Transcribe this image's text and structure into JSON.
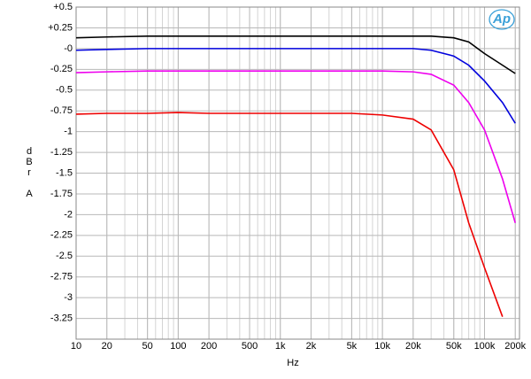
{
  "chart_data": {
    "type": "line",
    "logo": "Ap",
    "xlabel": "Hz",
    "ylabel": "dBr A",
    "xscale": "log",
    "grid": true,
    "xlim": [
      10,
      220000
    ],
    "ylim": [
      -3.5,
      0.5
    ],
    "xticks": [
      10,
      20,
      50,
      100,
      200,
      500,
      {
        "value": 1000,
        "label": "1k"
      },
      {
        "value": 2000,
        "label": "2k"
      },
      {
        "value": 5000,
        "label": "5k"
      },
      {
        "value": 10000,
        "label": "10k"
      },
      {
        "value": 20000,
        "label": "20k"
      },
      {
        "value": 50000,
        "label": "50k"
      },
      {
        "value": 100000,
        "label": "100k"
      },
      {
        "value": 200000,
        "label": "200k"
      }
    ],
    "yticks": [
      {
        "value": 0.5,
        "label": "+0.5"
      },
      {
        "value": 0.25,
        "label": "+0.25"
      },
      {
        "value": 0,
        "label": "-0"
      },
      -0.25,
      -0.5,
      -0.75,
      -1,
      -1.25,
      -1.5,
      -1.75,
      -2,
      -2.25,
      -2.5,
      -2.75,
      -3,
      -3.25
    ],
    "x": [
      10,
      20,
      50,
      100,
      200,
      500,
      1000,
      2000,
      5000,
      10000,
      20000,
      30000,
      50000,
      70000,
      100000,
      150000,
      200000
    ],
    "series": [
      {
        "name": "black",
        "color": "#000000",
        "values": [
          0.13,
          0.14,
          0.15,
          0.15,
          0.15,
          0.15,
          0.15,
          0.15,
          0.15,
          0.15,
          0.15,
          0.15,
          0.13,
          0.08,
          -0.06,
          -0.2,
          -0.3
        ]
      },
      {
        "name": "blue",
        "color": "#0000dd",
        "values": [
          -0.02,
          -0.01,
          0,
          0,
          0,
          0,
          0,
          0,
          0,
          0,
          0,
          -0.02,
          -0.09,
          -0.2,
          -0.39,
          -0.65,
          -0.9
        ]
      },
      {
        "name": "magenta",
        "color": "#ee00ee",
        "values": [
          -0.29,
          -0.28,
          -0.27,
          -0.27,
          -0.27,
          -0.27,
          -0.27,
          -0.27,
          -0.27,
          -0.27,
          -0.28,
          -0.31,
          -0.44,
          -0.65,
          -0.98,
          -1.57,
          -2.1
        ]
      },
      {
        "name": "red",
        "color": "#ee0000",
        "values": [
          -0.79,
          -0.78,
          -0.78,
          -0.77,
          -0.78,
          -0.78,
          -0.78,
          -0.78,
          -0.78,
          -0.8,
          -0.85,
          -0.98,
          -1.46,
          -2.1,
          -2.64,
          -3.23,
          null
        ]
      }
    ]
  }
}
